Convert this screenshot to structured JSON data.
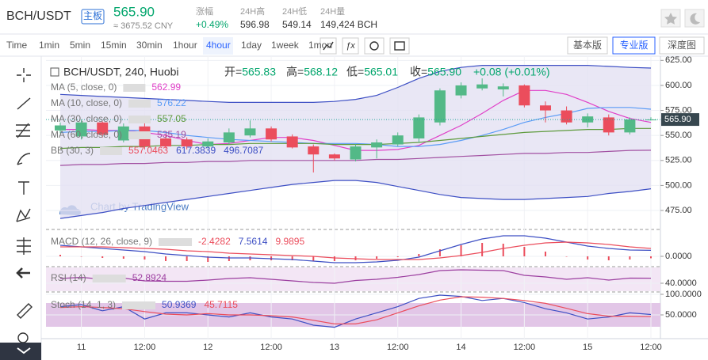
{
  "header": {
    "symbol": "BCH/USDT",
    "badge": "主板",
    "price": "565.90",
    "price_cny": "≈ 3675.52 CNY",
    "stats": [
      {
        "label": "涨幅",
        "value": "+0.49%",
        "color": "#03a66d"
      },
      {
        "label": "24H高",
        "value": "596.98",
        "color": "#333333"
      },
      {
        "label": "24H低",
        "value": "549.14",
        "color": "#333333"
      },
      {
        "label": "24H量",
        "value": "149,424 BCH",
        "color": "#333333"
      }
    ]
  },
  "toolbar": {
    "intervals": [
      "Time",
      "1min",
      "5min",
      "15min",
      "30min",
      "1hour",
      "4hour",
      "1day",
      "1week",
      "1mon"
    ],
    "active": "4hour",
    "versions": [
      "基本版",
      "专业版",
      "深度图"
    ],
    "active_version": "专业版"
  },
  "chart_data": [
    {
      "type": "candlestick",
      "title": "BCH/USDT, 240, Huobi",
      "ohlc": [
        {
          "label": "开=",
          "value": "565.83"
        },
        {
          "label": "高=",
          "value": "568.12"
        },
        {
          "label": "低=",
          "value": "565.01"
        },
        {
          "label": "收=",
          "value": "565.90"
        }
      ],
      "change": "+0.08 (+0.01%)",
      "watermark": "Chart by TradingView",
      "last_price_label": "565.90",
      "categories": [
        null,
        "11",
        null,
        null,
        "12:00",
        null,
        null,
        "12",
        null,
        null,
        "12:00",
        null,
        null,
        "13",
        null,
        null,
        "12:00",
        null,
        null,
        "14",
        null,
        null,
        "12:00",
        null,
        null,
        "15",
        null,
        null,
        "12:00"
      ],
      "open": [
        555,
        549,
        563,
        545,
        559,
        547,
        546,
        539,
        543,
        550,
        557,
        549,
        539,
        531,
        526,
        538,
        541,
        547,
        563,
        590,
        597,
        596,
        600,
        580,
        575,
        563,
        568,
        553,
        565.83
      ],
      "high": [
        563,
        566,
        564,
        562,
        562,
        550,
        548,
        547,
        557,
        565,
        559,
        551,
        541,
        532,
        541,
        546,
        553,
        571,
        597,
        603,
        607,
        602,
        601,
        584,
        579,
        572,
        571,
        568,
        568.12
      ],
      "low": [
        552,
        546,
        548,
        543,
        536,
        537,
        536,
        537,
        541,
        548,
        544,
        537,
        513,
        525,
        524,
        527,
        539,
        543,
        560,
        587,
        595,
        589,
        578,
        563,
        561,
        558,
        550,
        551,
        565.01
      ],
      "close": [
        560,
        563,
        551,
        559,
        539,
        539,
        539,
        544,
        553,
        557,
        546,
        538,
        531,
        527,
        539,
        543,
        550,
        568,
        595,
        600,
        601,
        599,
        580,
        575,
        563,
        569,
        553,
        566,
        565.9
      ],
      "up_color": "#53b987",
      "down_color": "#eb4d5c",
      "series": [
        {
          "name": "MA (5, close, 0)",
          "legend_value": "562.99",
          "color": "#e040c8",
          "values": [
            556,
            556,
            555,
            555,
            553,
            550,
            545,
            541,
            542,
            545,
            548,
            548,
            545,
            540,
            535,
            535,
            536,
            540,
            550,
            560,
            572,
            585,
            595,
            595,
            591,
            583,
            574,
            567,
            562.99
          ]
        },
        {
          "name": "MA (10, close, 0)",
          "legend_value": "576.22",
          "color": "#5b9cf6",
          "values": [
            553,
            554,
            554,
            555,
            555,
            553,
            550,
            548,
            546,
            545,
            544,
            543,
            542,
            542,
            542,
            541,
            539,
            539,
            541,
            545,
            550,
            556,
            563,
            568,
            572,
            577,
            578,
            578,
            576.22
          ]
        },
        {
          "name": "MA (30, close, 0)",
          "legend_value": "557.05",
          "color": "#5d9a3c",
          "values": [
            537,
            538,
            538,
            539,
            539,
            540,
            540,
            541,
            541,
            542,
            542,
            542,
            542,
            541,
            541,
            541,
            542,
            543,
            545,
            547,
            549,
            551,
            553,
            554,
            555,
            556,
            556,
            557,
            557.05
          ]
        },
        {
          "name": "MA (60, close, 0)",
          "legend_value": "535.19",
          "color": "#a14fa1",
          "values": [
            520,
            521,
            521,
            522,
            522,
            523,
            523,
            524,
            524,
            525,
            525,
            525,
            525,
            525,
            525,
            526,
            526,
            527,
            528,
            529,
            530,
            531,
            532,
            532,
            533,
            533,
            534,
            535,
            535.19
          ]
        }
      ],
      "bands": {
        "name": "BB (30, 3)",
        "legend_values": [
          "557.0463",
          "617.3839",
          "496.7087"
        ],
        "legend_colors": [
          "#eb4d5c",
          "#3d4fc4",
          "#3d4fc4"
        ],
        "color": "#3d4fc4",
        "fill": "#e4e1f3",
        "upper": [
          591,
          590,
          589,
          588,
          587,
          586,
          585,
          584,
          583,
          583,
          583,
          583,
          583,
          584,
          586,
          590,
          598,
          607,
          614,
          618,
          620,
          620,
          620,
          620,
          620,
          620,
          619,
          618,
          617.3839
        ],
        "lower": [
          467,
          470,
          473,
          477,
          480,
          483,
          486,
          489,
          492,
          495,
          498,
          501,
          503,
          505,
          505,
          503,
          499,
          495,
          491,
          488,
          487,
          486,
          486,
          487,
          488,
          489,
          492,
          494,
          496.7087
        ]
      },
      "ylim": [
        460,
        630
      ],
      "yticks": [
        {
          "value": 475,
          "label": "475.00"
        },
        {
          "value": 500,
          "label": "500.00"
        },
        {
          "value": 525,
          "label": "525.00"
        },
        {
          "value": 550,
          "label": "550.00"
        },
        {
          "value": 575,
          "label": "575.00"
        },
        {
          "value": 600,
          "label": "600.00"
        },
        {
          "value": 625,
          "label": "625.00"
        }
      ]
    },
    {
      "type": "line",
      "title": "MACD (12, 26, close, 9)",
      "ylim": [
        -12,
        32
      ],
      "yticks": [
        {
          "value": 0,
          "label": "0.0000"
        }
      ],
      "series": [
        {
          "kind": "bar",
          "legend_value": "-2.4282",
          "color": "#eb4d5c",
          "values": [
            2,
            0,
            -2,
            -3,
            -4,
            -6,
            -6,
            -7,
            -6,
            -5,
            -5,
            -5,
            -6,
            -6,
            -5,
            -3,
            -1,
            3,
            9,
            14,
            17,
            16,
            12,
            6,
            0,
            -4,
            -5,
            -4,
            -2.4282
          ]
        },
        {
          "kind": "line",
          "legend_value": "7.5614",
          "color": "#3d4fc4",
          "values": [
            14,
            12,
            10,
            8,
            6,
            3,
            1,
            -1,
            -2,
            -2,
            -3,
            -4,
            -6,
            -8,
            -8,
            -7,
            -5,
            -1,
            7,
            15,
            22,
            26,
            26,
            23,
            18,
            13,
            10,
            8,
            7.5614
          ]
        },
        {
          "kind": "line",
          "legend_value": "9.9895",
          "color": "#eb4d5c",
          "values": [
            12,
            12,
            12,
            11,
            10,
            9,
            7,
            6,
            4,
            3,
            2,
            1,
            0,
            -2,
            -3,
            -4,
            -4,
            -4,
            -2,
            1,
            5,
            10,
            14,
            17,
            18,
            17,
            15,
            12,
            9.9895
          ]
        }
      ]
    },
    {
      "type": "line",
      "title": "RSI (14)",
      "ylim": [
        20,
        80
      ],
      "yticks": [
        {
          "value": 40,
          "label": "40.0000"
        }
      ],
      "series": [
        {
          "kind": "line",
          "legend_value": "52.8924",
          "color": "#9c3fa0",
          "values": [
            52,
            55,
            50,
            53,
            46,
            45,
            45,
            48,
            52,
            54,
            50,
            46,
            42,
            40,
            47,
            50,
            55,
            62,
            72,
            74,
            73,
            72,
            60,
            56,
            50,
            54,
            48,
            53,
            52.8924
          ]
        }
      ]
    },
    {
      "type": "line",
      "title": "Stoch (14, 1, 3)",
      "ylim": [
        0,
        100
      ],
      "yticks": [
        {
          "value": 50,
          "label": "50.0000"
        },
        {
          "value": 100,
          "label": "100.0000"
        }
      ],
      "series": [
        {
          "kind": "line",
          "legend_value": "50.9369",
          "color": "#3d4fc4",
          "values": [
            70,
            75,
            60,
            70,
            40,
            55,
            55,
            50,
            45,
            55,
            45,
            40,
            25,
            20,
            40,
            55,
            70,
            90,
            98,
            95,
            85,
            90,
            80,
            65,
            55,
            40,
            45,
            55,
            50.9369
          ]
        },
        {
          "kind": "line",
          "legend_value": "45.7115",
          "color": "#eb4d5c",
          "values": [
            68,
            70,
            68,
            65,
            58,
            52,
            50,
            53,
            50,
            50,
            48,
            45,
            37,
            28,
            28,
            38,
            55,
            72,
            86,
            94,
            93,
            90,
            85,
            78,
            66,
            53,
            47,
            47,
            45.7115
          ]
        }
      ]
    }
  ]
}
